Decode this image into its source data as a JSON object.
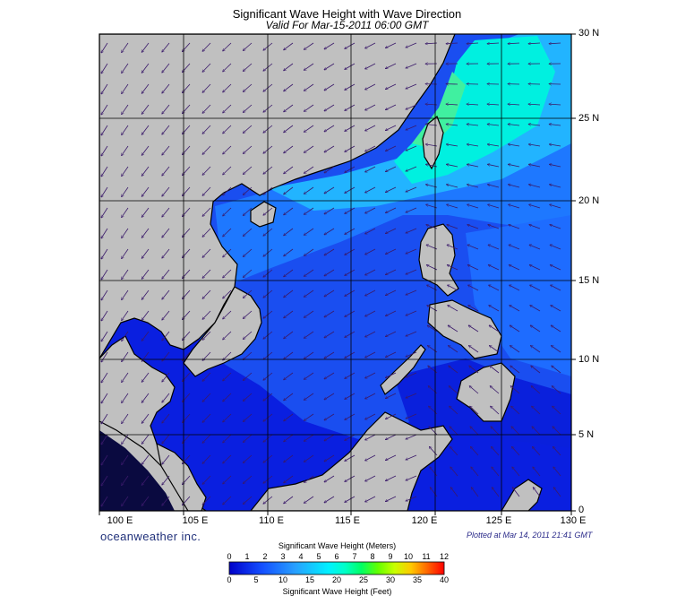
{
  "title": "Significant Wave Height with Wave Direction",
  "subtitle": "Valid For Mar-15-2011 06:00 GMT",
  "brand": "oceanweather inc.",
  "plotted": "Plotted at Mar 14, 2011 21:41 GMT",
  "lon_labels": [
    "100 E",
    "105 E",
    "110 E",
    "115 E",
    "120 E",
    "125 E",
    "130 E"
  ],
  "lat_labels": [
    "30 N",
    "25 N",
    "20 N",
    "15 N",
    "10 N",
    "5 N",
    "0"
  ],
  "colorbar": {
    "meters_title": "Significant Wave Height (Meters)",
    "feet_title": "Significant Wave Height (Feet)",
    "meters_ticks": [
      "0",
      "1",
      "2",
      "3",
      "4",
      "5",
      "6",
      "7",
      "8",
      "9",
      "10",
      "11",
      "12"
    ],
    "feet_ticks": [
      "0",
      "5",
      "10",
      "15",
      "20",
      "25",
      "30",
      "35",
      "40"
    ],
    "colors": [
      "#0000c8",
      "#0a28e6",
      "#1450ff",
      "#1e78ff",
      "#28a0ff",
      "#14c8ff",
      "#00f0ff",
      "#00ffc8",
      "#00ff64",
      "#64ff00",
      "#c8ff00",
      "#ffc800",
      "#ff6400",
      "#ff0000"
    ]
  },
  "colors": {
    "land": "#c0c0c0",
    "deep": "#0a1fe0",
    "mid": "#1560ff",
    "light": "#20b0ff",
    "high": "#00ffd0",
    "arrow": "#3a1a6a",
    "grid": "#000000"
  }
}
